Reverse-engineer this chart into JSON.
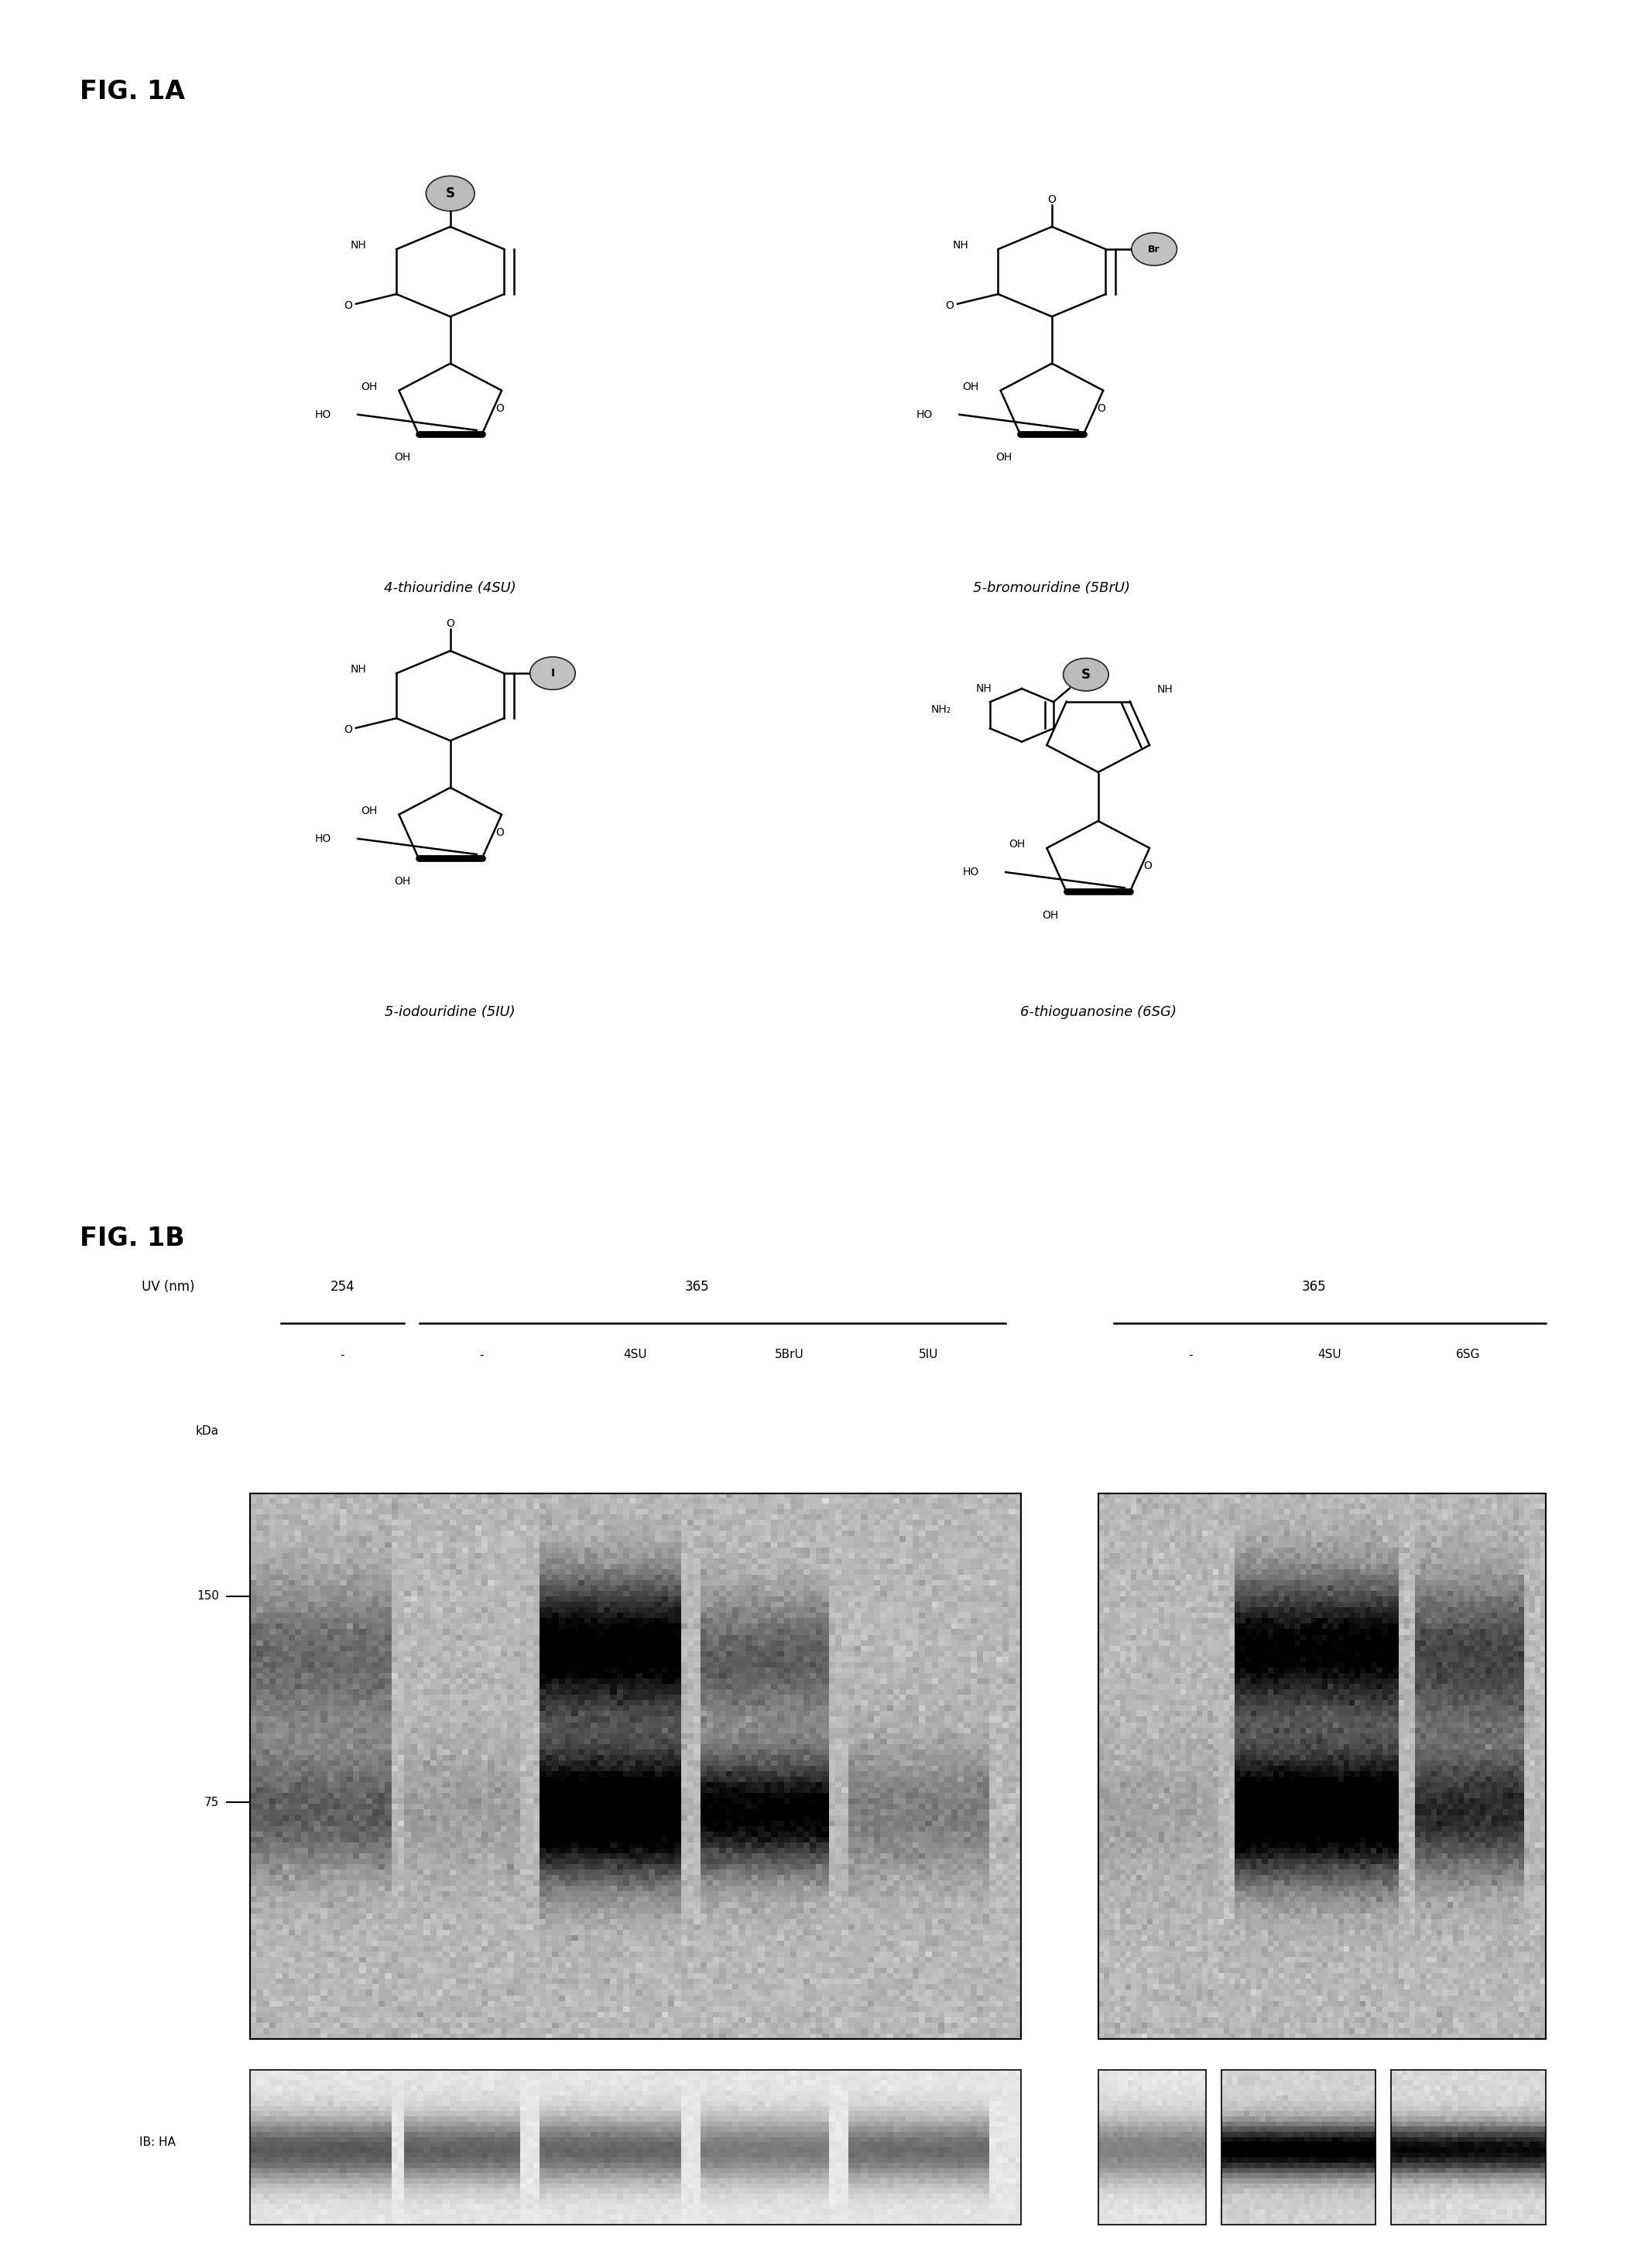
{
  "fig_label_A": "FIG. 1A",
  "fig_label_B": "FIG. 1B",
  "compound_names": [
    "4-thiouridine (4SU)",
    "5-bromouridine (5BrU)",
    "5-iodouridine (5IU)",
    "6-thioguanosine (6SG)"
  ],
  "uv_label": "UV (nm)",
  "uv_groups": [
    "254",
    "365",
    "365"
  ],
  "lane_labels_left": [
    "-",
    "-",
    "4SU",
    "5BrU",
    "5IU"
  ],
  "lane_labels_right": [
    "-",
    "4SU",
    "6SG"
  ],
  "kda_label": "kDa",
  "kda_150": "150",
  "kda_75": "75",
  "ib_label": "IB: HA",
  "bg_color": "#ffffff"
}
